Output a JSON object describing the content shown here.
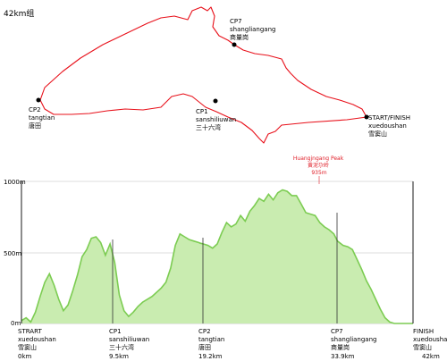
{
  "title": "42km组",
  "route_color": "#e8101a",
  "profile_fill": "#c9ecb0",
  "profile_stroke": "#7ccc52",
  "map_labels": {
    "cp7": [
      "CP7",
      "shangliangang",
      "商量岗"
    ],
    "cp2": [
      "CP2",
      "tangtian",
      "唐田"
    ],
    "cp1": [
      "CP1",
      "sanshiliuwan",
      "三十六湾"
    ],
    "startfinish": [
      "START/FINISH",
      "xuedoushan",
      "雪窦山"
    ]
  },
  "peak_label": [
    "Huangjngang Peak",
    "黄泥尕岭",
    "935m"
  ],
  "y_ticks": [
    "1000m",
    "500m",
    "0m"
  ],
  "x_labels": {
    "start": [
      "STRART",
      "xuedoushan",
      "雪窦山",
      "0km"
    ],
    "cp1": [
      "CP1",
      "sanshiliuwan",
      "三十六湾",
      "9.5km"
    ],
    "cp2": [
      "CP2",
      "tangtian",
      "唐田",
      "19.2km"
    ],
    "cp7": [
      "CP7",
      "shangliangang",
      "商量岗",
      "33.9km"
    ],
    "finish": [
      "FINISH",
      "xuedoushan",
      "雪窦山",
      "42km"
    ]
  },
  "chart_data": {
    "type": "area",
    "xlabel": "",
    "ylabel": "",
    "xlim": [
      0,
      42
    ],
    "ylim": [
      0,
      1000
    ],
    "x": [
      0,
      0.5,
      1,
      1.5,
      2,
      2.5,
      3,
      3.5,
      4,
      4.5,
      5,
      5.5,
      6,
      6.5,
      7,
      7.5,
      8,
      8.5,
      9,
      9.5,
      10,
      10.5,
      11,
      11.5,
      12,
      12.5,
      13,
      14,
      15,
      15.5,
      16,
      16.5,
      17,
      17.5,
      18,
      18.5,
      19,
      19.2,
      19.5,
      20,
      20.5,
      21,
      21.5,
      22,
      22.5,
      23,
      23.5,
      24,
      24.5,
      25,
      25.5,
      26,
      26.5,
      27,
      27.5,
      28,
      28.5,
      29,
      29.5,
      30,
      30.5,
      31,
      31.5,
      32,
      32.5,
      33,
      33.5,
      33.9,
      34.5,
      35,
      35.5,
      36,
      36.5,
      37,
      37.5,
      38,
      38.5,
      39,
      39.5,
      40,
      40.5,
      41,
      41.5,
      42
    ],
    "y": [
      20,
      40,
      10,
      80,
      190,
      290,
      350,
      270,
      170,
      90,
      130,
      230,
      340,
      470,
      520,
      600,
      610,
      570,
      480,
      560,
      430,
      200,
      90,
      50,
      80,
      120,
      150,
      190,
      250,
      290,
      390,
      550,
      630,
      610,
      590,
      580,
      570,
      565,
      560,
      550,
      530,
      560,
      640,
      710,
      680,
      700,
      760,
      720,
      790,
      830,
      880,
      860,
      910,
      870,
      920,
      940,
      930,
      900,
      900,
      840,
      780,
      770,
      760,
      710,
      680,
      660,
      630,
      580,
      550,
      540,
      520,
      450,
      380,
      300,
      240,
      170,
      100,
      40,
      10,
      0,
      0,
      0,
      0,
      0
    ]
  }
}
